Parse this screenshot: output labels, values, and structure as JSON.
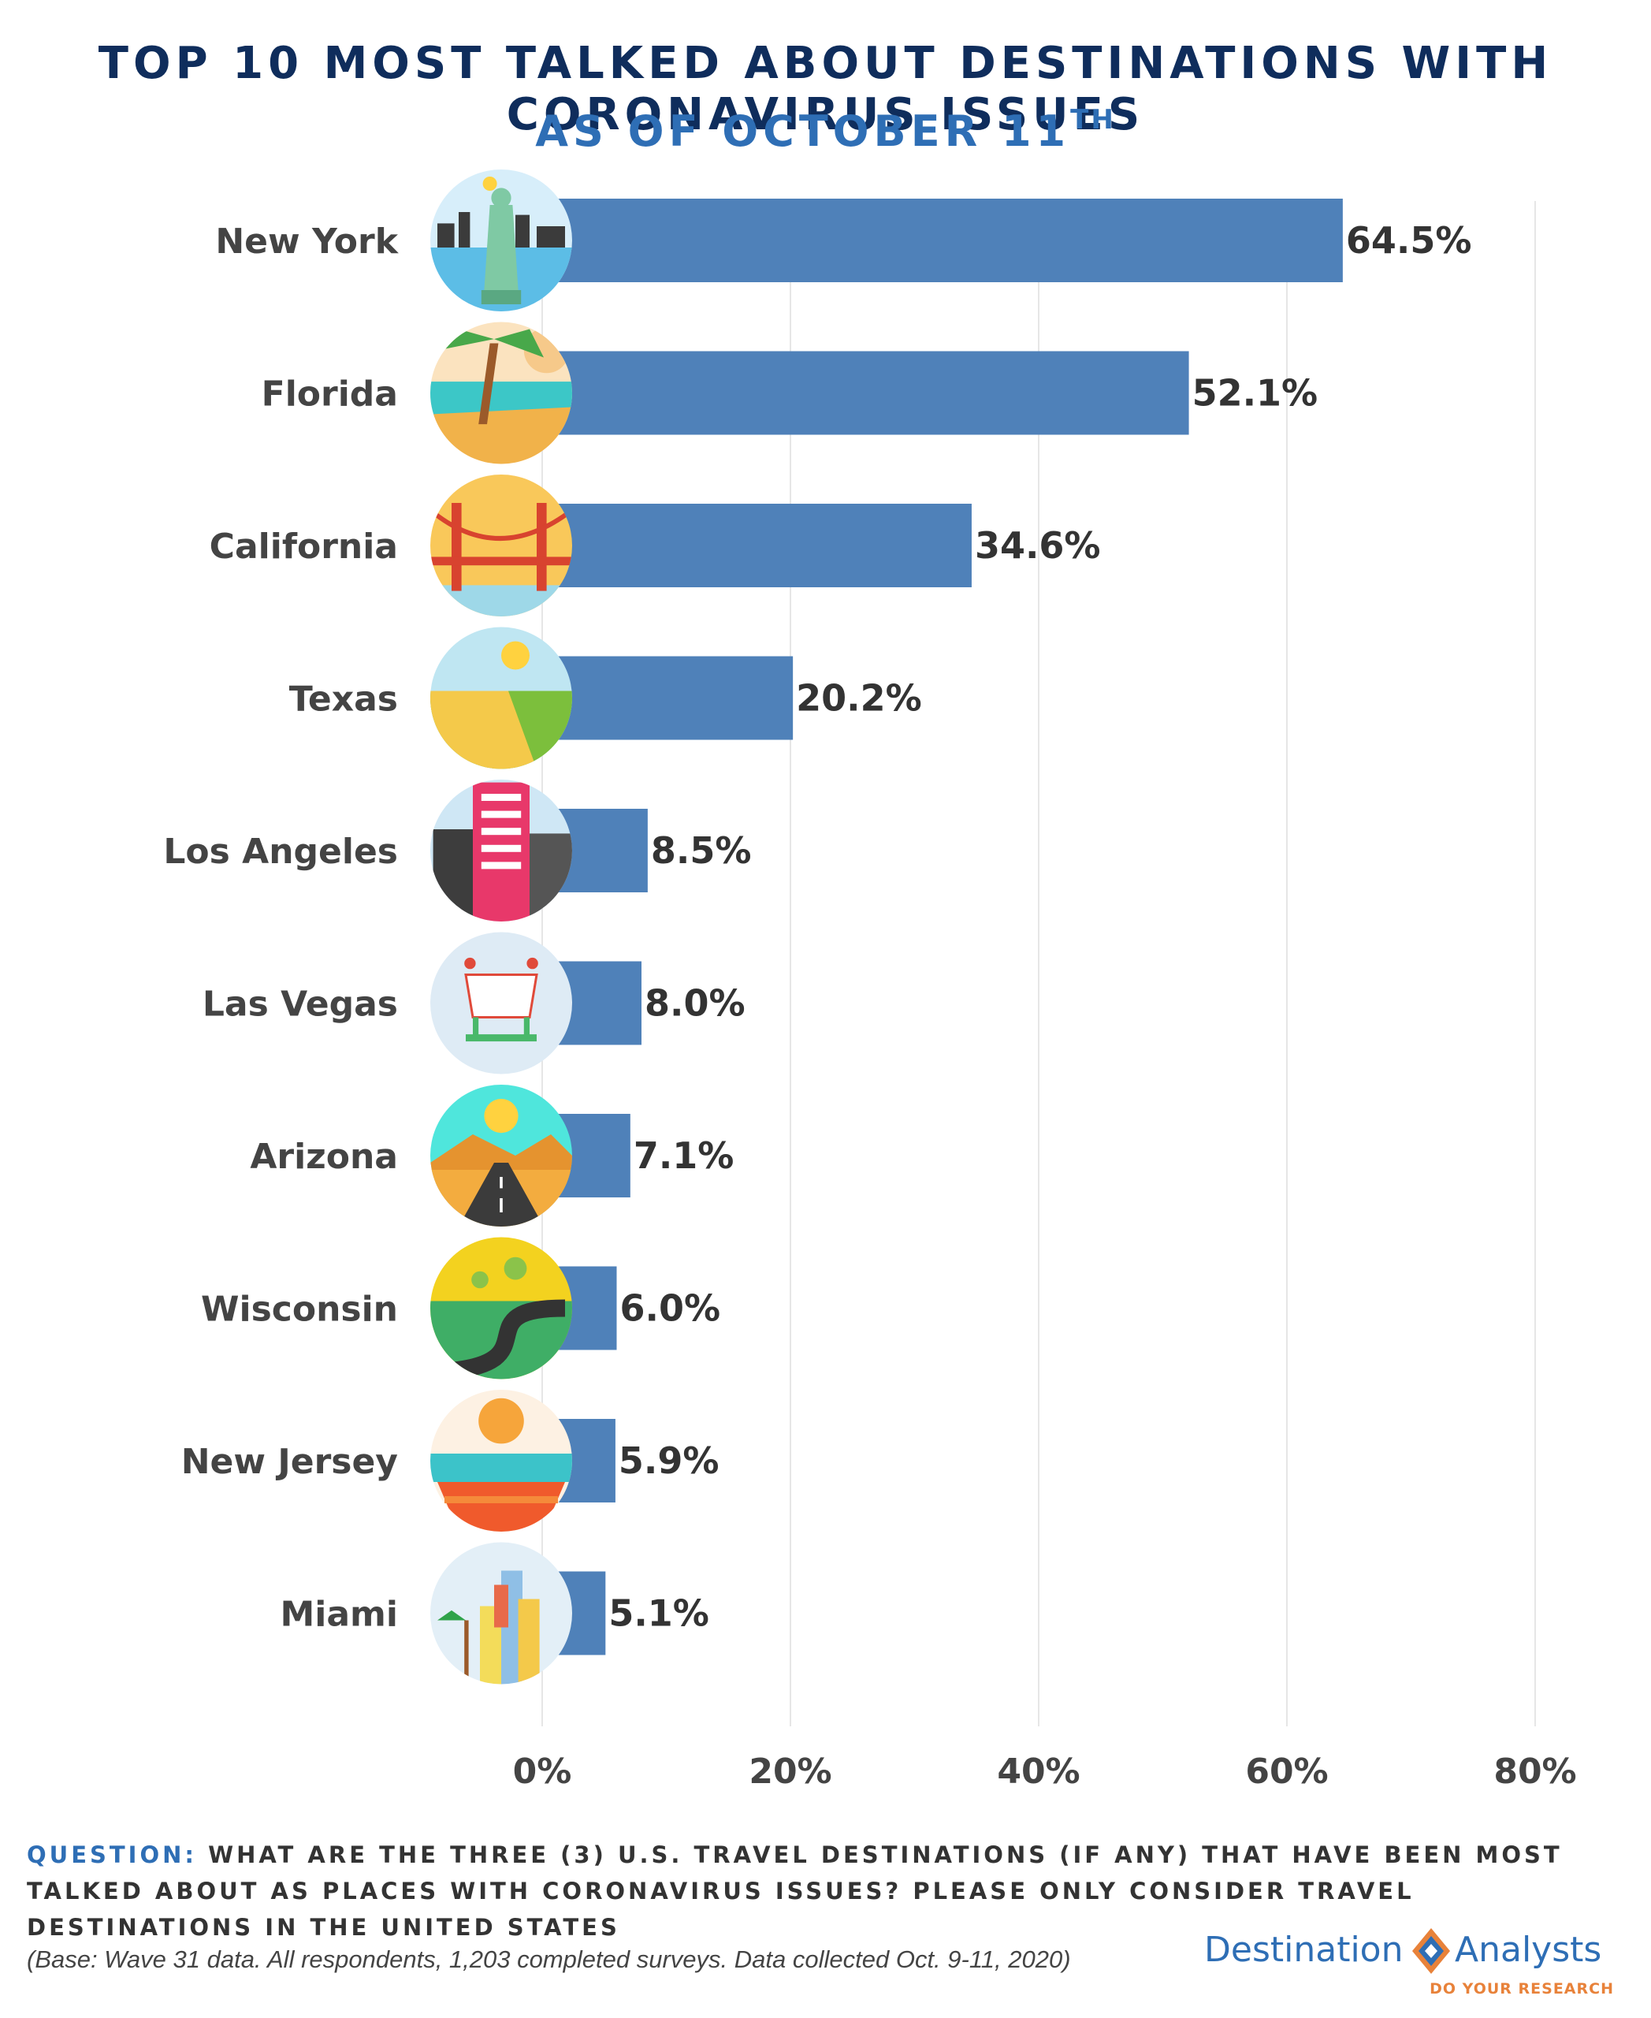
{
  "header": {
    "title": "TOP 10 MOST TALKED ABOUT DESTINATIONS WITH CORONAVIRUS ISSUES",
    "subtitle": "AS OF OCTOBER 11",
    "subtitle_sup": "TH"
  },
  "colors": {
    "bar": "#4f81b9",
    "title": "#0f2d5c",
    "accent": "#2e6eb5",
    "label": "#444444",
    "value": "#333333",
    "grid": "#e6e6e6",
    "logo_tag": "#e8823a"
  },
  "chart_data": {
    "type": "bar",
    "orientation": "horizontal",
    "categories": [
      "New York",
      "Florida",
      "California",
      "Texas",
      "Los Angeles",
      "Las Vegas",
      "Arizona",
      "Wisconsin",
      "New Jersey",
      "Miami"
    ],
    "values": [
      64.5,
      52.1,
      34.6,
      20.2,
      8.5,
      8.0,
      7.1,
      6.0,
      5.9,
      5.1
    ],
    "value_labels": [
      "64.5%",
      "52.1%",
      "34.6%",
      "20.2%",
      "8.5%",
      "8.0%",
      "7.1%",
      "6.0%",
      "5.9%",
      "5.1%"
    ],
    "icons": [
      "statue-of-liberty-icon",
      "palm-beach-icon",
      "golden-gate-bridge-icon",
      "fields-icon",
      "skyscraper-icon",
      "vegas-sign-icon",
      "desert-road-icon",
      "winding-road-icon",
      "sunset-beach-icon",
      "miami-skyline-icon"
    ],
    "xticks": [
      "0%",
      "20%",
      "40%",
      "60%",
      "80%"
    ],
    "xlim": [
      0,
      80
    ],
    "grid": "vertical"
  },
  "footer": {
    "question_label": "QUESTION:",
    "question_text": " WHAT ARE THE THREE (3) U.S. TRAVEL DESTINATIONS (IF ANY) THAT HAVE BEEN MOST TALKED ABOUT AS PLACES WITH CORONAVIRUS ISSUES? PLEASE ONLY CONSIDER TRAVEL DESTINATIONS IN THE UNITED STATES",
    "base": "(Base: Wave 31 data. All respondents, 1,203 completed surveys. Data collected Oct. 9-11, 2020)"
  },
  "logo": {
    "part1": "Destination",
    "part2": "Analysts",
    "tagline": "DO YOUR RESEARCH"
  }
}
